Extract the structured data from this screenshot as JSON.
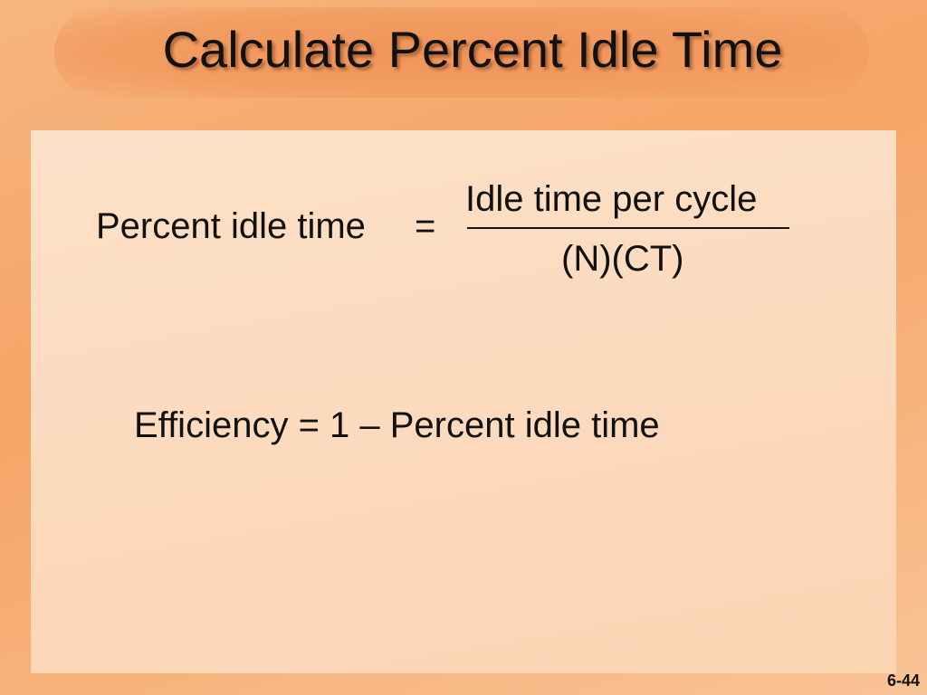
{
  "title": "Calculate Percent Idle Time",
  "formula": {
    "lhs": "Percent idle time",
    "equals": "=",
    "numerator": "Idle time per cycle",
    "denominator": "(N)(CT)"
  },
  "efficiency": "Efficiency = 1 – Percent idle time",
  "page_number": "6-44"
}
